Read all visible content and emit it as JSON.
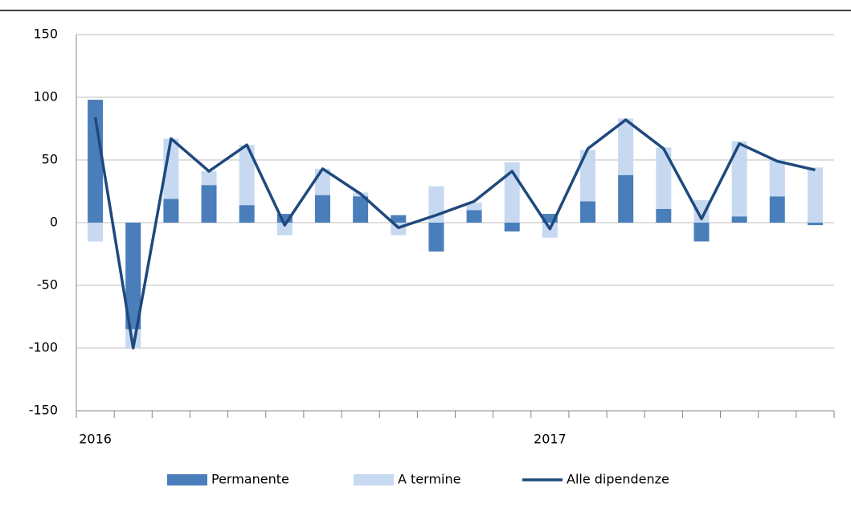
{
  "chart_data": {
    "type": "bar-line",
    "categories": [
      "2016",
      null,
      null,
      null,
      null,
      null,
      null,
      null,
      null,
      null,
      null,
      null,
      "2017",
      null,
      null,
      null,
      null,
      null,
      null,
      null
    ],
    "series": [
      {
        "name": "Permanente",
        "type": "bar",
        "color": "#4a7ebb",
        "values": [
          98,
          -85,
          19,
          30,
          14,
          7,
          22,
          21,
          6,
          -23,
          10,
          -7,
          7,
          17,
          38,
          11,
          -15,
          5,
          21,
          -2
        ]
      },
      {
        "name": "A termine",
        "type": "bar",
        "color": "#c6d9f1",
        "values": [
          -15,
          -15,
          48,
          11,
          48,
          -10,
          21,
          3,
          -10,
          29,
          6,
          48,
          -12,
          41,
          45,
          49,
          18,
          60,
          29,
          44
        ]
      },
      {
        "name": "Alle dipendenze",
        "type": "line",
        "color": "#1f497d",
        "values": [
          84,
          -100,
          67,
          41,
          62,
          -2,
          43,
          23,
          -4,
          6,
          17,
          41,
          -5,
          59,
          82,
          59,
          3,
          63,
          49,
          42
        ]
      }
    ],
    "ylim": [
      -150,
      150
    ],
    "yticks": [
      -150,
      -100,
      -50,
      0,
      50,
      100,
      150
    ],
    "grid": true
  }
}
